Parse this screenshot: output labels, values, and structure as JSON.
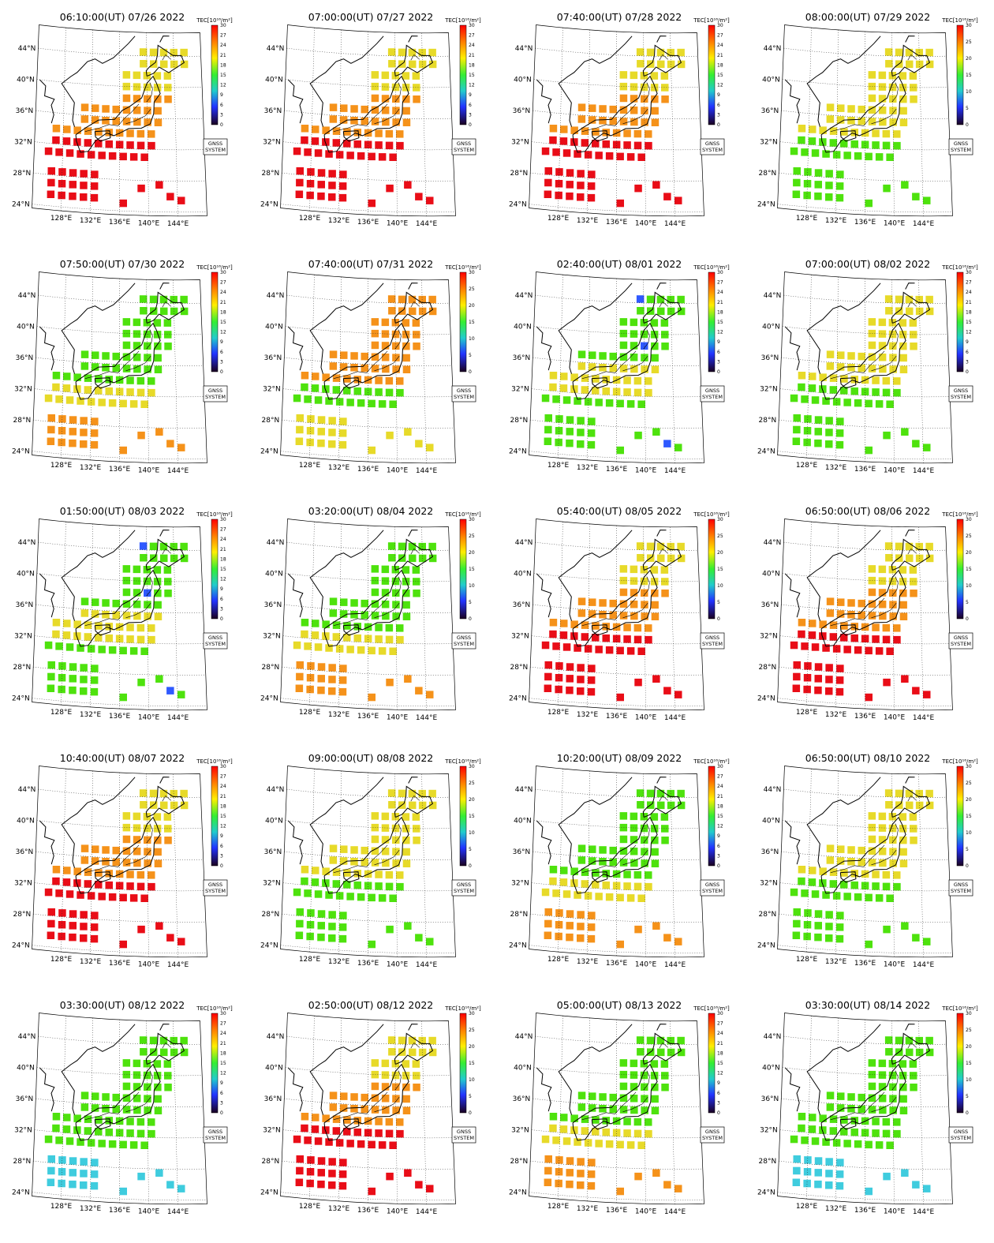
{
  "figure": {
    "colorbar_title_a": "TEC[10¹⁶/m²]",
    "colorbar_title_b": "TEC[10¹⁶/m²]",
    "ticks_a": [
      "30",
      "27",
      "24",
      "21",
      "18",
      "15",
      "12",
      "9",
      "6",
      "3",
      "0"
    ],
    "ticks_b": [
      "30",
      "25",
      "20",
      "15",
      "10",
      "5",
      "0"
    ],
    "lat_labels": [
      "44°N",
      "40°N",
      "36°N",
      "32°N",
      "28°N",
      "24°N"
    ],
    "lon_labels": [
      "128°E",
      "132°E",
      "136°E",
      "140°E",
      "144°E"
    ],
    "box_line1": "GNSS",
    "box_line2": "SYSTEM",
    "colors": {
      "red": "#e8000b",
      "orange": "#f48c0e",
      "yellow": "#e6d81e",
      "green": "#44e000",
      "cyan": "#35c9dc",
      "blue": "#2450ff"
    }
  },
  "panels": [
    {
      "title": "06:10:00(UT) 07/26 2022",
      "scale": "a",
      "tone": "red"
    },
    {
      "title": "07:00:00(UT) 07/27 2022",
      "scale": "a",
      "tone": "red"
    },
    {
      "title": "07:40:00(UT) 07/28 2022",
      "scale": "a",
      "tone": "red"
    },
    {
      "title": "08:00:00(UT) 07/29 2022",
      "scale": "b",
      "tone": "green"
    },
    {
      "title": "07:50:00(UT) 07/30 2022",
      "scale": "a",
      "tone": "orange"
    },
    {
      "title": "07:40:00(UT) 07/31 2022",
      "scale": "b",
      "tone": "yellow"
    },
    {
      "title": "02:40:00(UT) 08/01 2022",
      "scale": "a",
      "tone": "mixed"
    },
    {
      "title": "07:00:00(UT) 08/02 2022",
      "scale": "a",
      "tone": "green"
    },
    {
      "title": "01:50:00(UT) 08/03 2022",
      "scale": "a",
      "tone": "mixed"
    },
    {
      "title": "03:20:00(UT) 08/04 2022",
      "scale": "b",
      "tone": "orange"
    },
    {
      "title": "05:40:00(UT) 08/05 2022",
      "scale": "b",
      "tone": "red"
    },
    {
      "title": "06:50:00(UT) 08/06 2022",
      "scale": "b",
      "tone": "red"
    },
    {
      "title": "10:40:00(UT) 08/07 2022",
      "scale": "a",
      "tone": "red"
    },
    {
      "title": "09:00:00(UT) 08/08 2022",
      "scale": "b",
      "tone": "green"
    },
    {
      "title": "10:20:00(UT) 08/09 2022",
      "scale": "a",
      "tone": "orange"
    },
    {
      "title": "06:50:00(UT) 08/10 2022",
      "scale": "b",
      "tone": "green"
    },
    {
      "title": "03:30:00(UT) 08/12 2022",
      "scale": "a",
      "tone": "cyan"
    },
    {
      "title": "02:50:00(UT) 08/12 2022",
      "scale": "b",
      "tone": "red"
    },
    {
      "title": "05:00:00(UT) 08/13 2022",
      "scale": "a",
      "tone": "orange"
    },
    {
      "title": "03:30:00(UT) 08/14 2022",
      "scale": "b",
      "tone": "cyan"
    }
  ]
}
